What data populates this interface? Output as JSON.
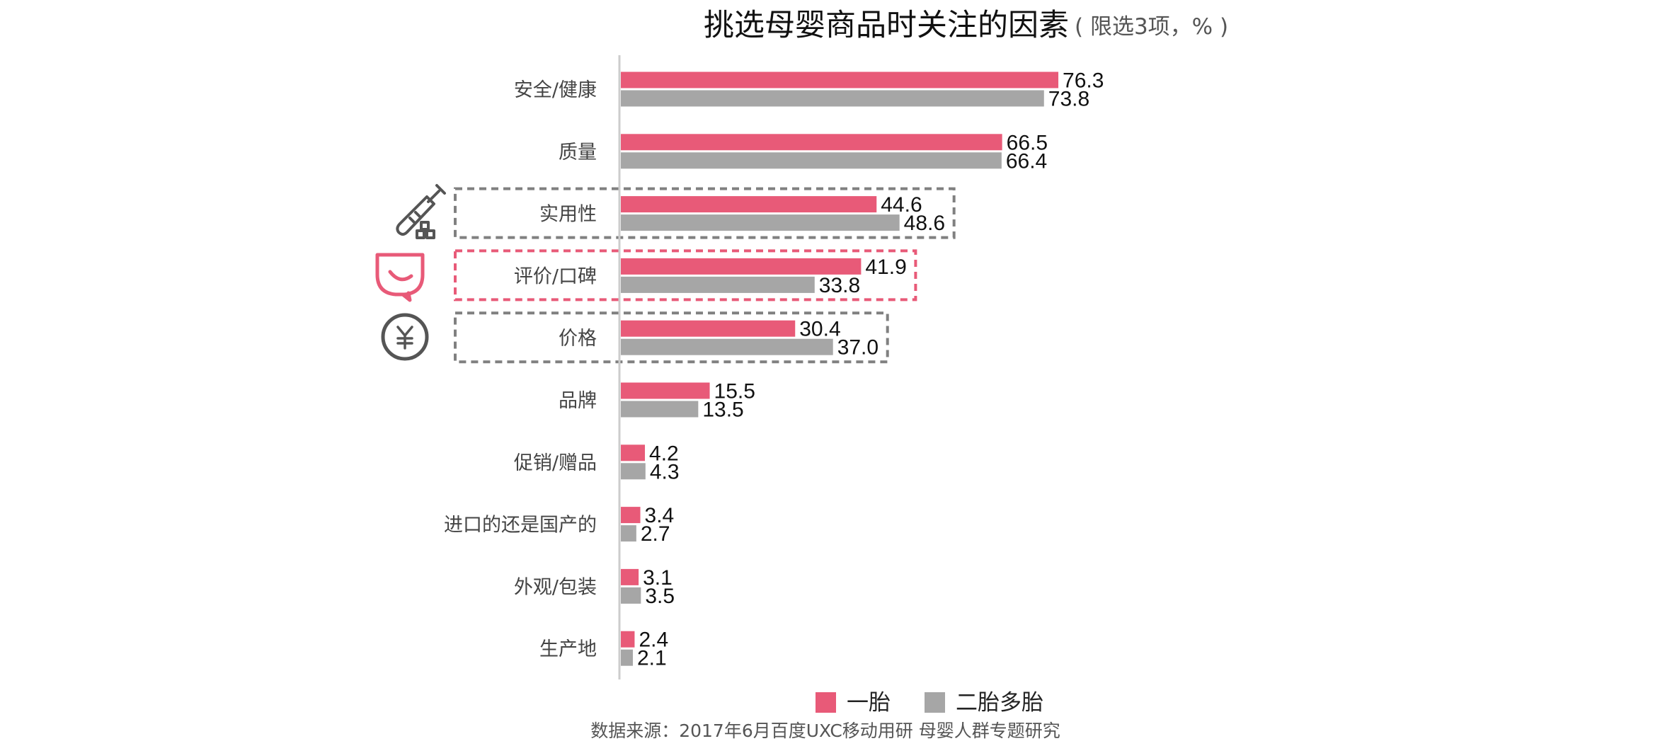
{
  "colors": {
    "series_1": "#e85a78",
    "series_2": "#a6a6a6",
    "highlight_gray": "#808080",
    "highlight_pink": "#e85a78",
    "axis": "#cccccc"
  },
  "icons": [
    "screwdriver-blocks-icon",
    "smile-speech-bubble-icon",
    "yuan-coin-icon"
  ],
  "chart_data": {
    "type": "bar",
    "orientation": "horizontal",
    "title": "挑选母婴商品时关注的因素",
    "subtitle": "( 限选3项，% )",
    "categories": [
      "安全/健康",
      "质量",
      "实用性",
      "评价/口碑",
      "价格",
      "品牌",
      "促销/赠品",
      "进口的还是国产的",
      "外观/包装",
      "生产地"
    ],
    "series": [
      {
        "name": "一胎",
        "values": [
          76.3,
          66.5,
          44.6,
          41.9,
          30.4,
          15.5,
          4.2,
          3.4,
          3.1,
          2.4
        ]
      },
      {
        "name": "二胎多胎",
        "values": [
          73.8,
          66.4,
          48.6,
          33.8,
          37.0,
          13.5,
          4.3,
          2.7,
          3.5,
          2.1
        ]
      }
    ],
    "value_labels": [
      [
        "76.3",
        "66.5",
        "44.6",
        "41.9",
        "30.4",
        "15.5",
        "4.2",
        "3.4",
        "3.1",
        "2.4"
      ],
      [
        "73.8",
        "66.4",
        "48.6",
        "33.8",
        "37.0",
        "13.5",
        "4.3",
        "2.7",
        "3.5",
        "2.1"
      ]
    ],
    "xlim": [
      0,
      80
    ],
    "grid": false,
    "legend_position": "bottom",
    "highlighted_categories": [
      "实用性",
      "评价/口碑",
      "价格"
    ],
    "source": "数据来源：2017年6月百度UXC移动用研 母婴人群专题研究"
  }
}
